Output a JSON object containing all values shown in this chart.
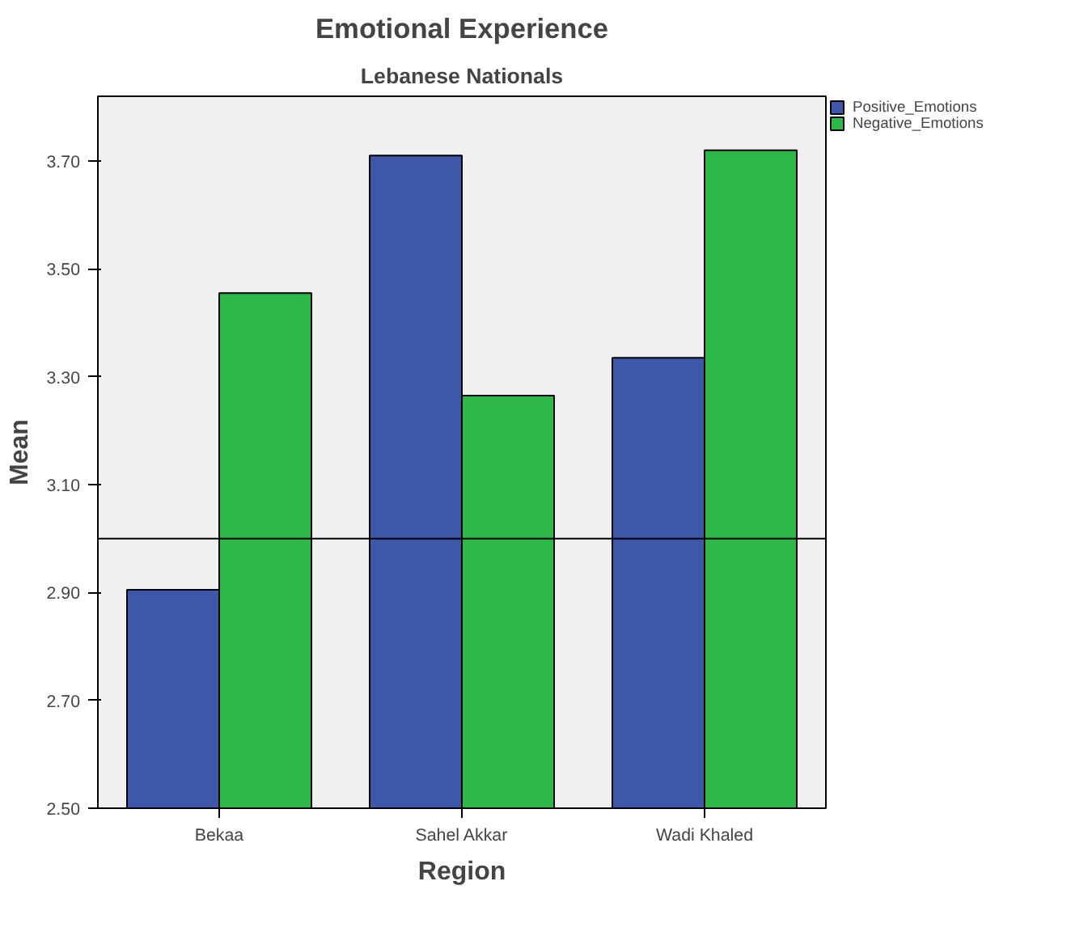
{
  "chart_data": {
    "type": "bar",
    "title": "Emotional Experience",
    "subtitle": "Lebanese Nationals",
    "xlabel": "Region",
    "ylabel": "Mean",
    "categories": [
      "Bekaa",
      "Sahel Akkar",
      "Wadi Khaled"
    ],
    "series": [
      {
        "name": "Positive_Emotions",
        "color": "#3f57a8",
        "values": [
          2.905,
          3.71,
          3.335
        ]
      },
      {
        "name": "Negative_Emotions",
        "color": "#2db84a",
        "values": [
          3.455,
          3.265,
          3.72
        ]
      }
    ],
    "ylim": [
      2.5,
      3.82
    ],
    "yticks": [
      {
        "value": 2.5,
        "label": "2.50"
      },
      {
        "value": 2.7,
        "label": "2.70"
      },
      {
        "value": 2.9,
        "label": "2.90"
      },
      {
        "value": 3.1,
        "label": "3.10"
      },
      {
        "value": 3.3,
        "label": "3.30"
      },
      {
        "value": 3.5,
        "label": "3.50"
      },
      {
        "value": 3.7,
        "label": "3.70"
      }
    ],
    "ref_lines": [
      {
        "axis": "y",
        "value": 3.0,
        "color": "#000000"
      }
    ],
    "grid": false,
    "legend": "top right"
  }
}
